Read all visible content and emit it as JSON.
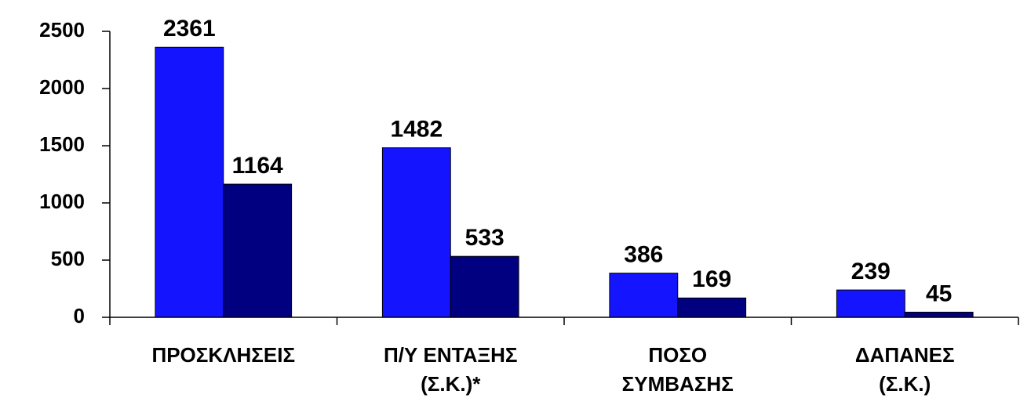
{
  "chart_data": {
    "type": "bar",
    "categories": [
      [
        "ΠΡΟΣΚΛΗΣΕΙΣ"
      ],
      [
        "Π/Υ ΕΝΤΑΞΗΣ",
        "(Σ.Κ.)*"
      ],
      [
        "ΠΟΣΟ",
        "ΣΥΜΒΑΣΗΣ"
      ],
      [
        "ΔΑΠΑΝΕΣ",
        "(Σ.Κ.)"
      ]
    ],
    "series": [
      {
        "color": "#1414ff",
        "values": [
          2361,
          1482,
          386,
          239
        ]
      },
      {
        "color": "#000080",
        "values": [
          1164,
          533,
          169,
          45
        ]
      }
    ],
    "ylim": [
      0,
      2500
    ],
    "yticks": [
      0,
      500,
      1000,
      1500,
      2000,
      2500
    ],
    "grid": false
  }
}
